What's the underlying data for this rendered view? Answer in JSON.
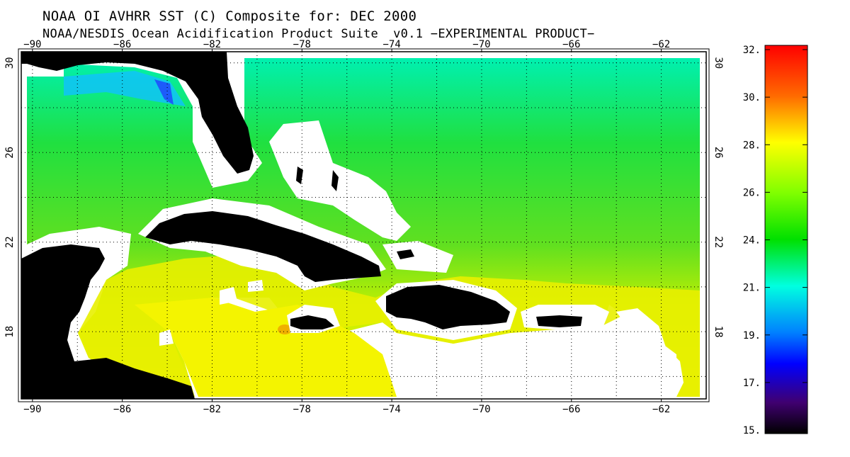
{
  "header": {
    "title": "NOAA OI AVHRR SST (C) Composite for: DEC 2000",
    "subtitle": "NOAA/NESDIS Ocean Acidification Product Suite  v0.1 −EXPERIMENTAL PRODUCT−"
  },
  "map": {
    "lon_ticks": [
      "-90",
      "-86",
      "-82",
      "-78",
      "-74",
      "-70",
      "-66",
      "-62"
    ],
    "lat_ticks": [
      "30",
      "26",
      "22",
      "18"
    ],
    "lon_range": [
      -90.5,
      -60.0
    ],
    "lat_range": [
      15.0,
      30.5
    ],
    "grid": true,
    "land_color": "#000000",
    "nodata_color": "#ffffff"
  },
  "colorbar": {
    "labels": [
      "32.",
      "30.",
      "28.",
      "26.",
      "24.",
      "21.",
      "19.",
      "17.",
      "15."
    ],
    "range": [
      15,
      32
    ],
    "colors": [
      "#ff0000",
      "#ff7a00",
      "#ffff00",
      "#7fff00",
      "#00e000",
      "#00ffd0",
      "#0080ff",
      "#0000ff",
      "#400070",
      "#000000"
    ]
  },
  "colors": {
    "frame": "#000000",
    "grid": "#000000"
  }
}
